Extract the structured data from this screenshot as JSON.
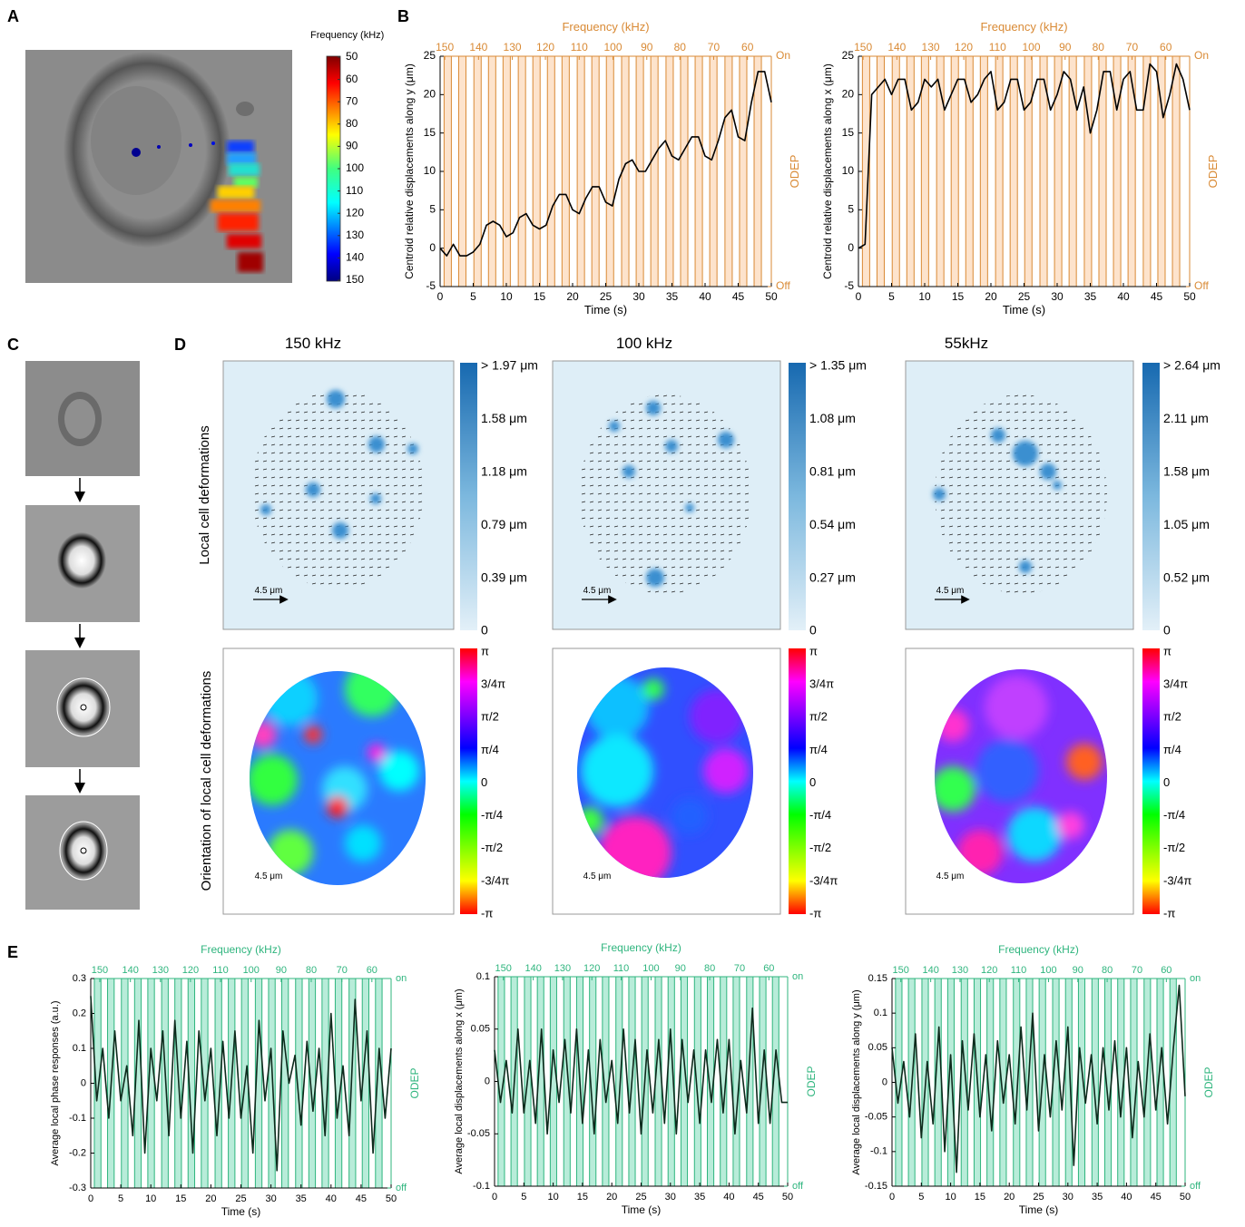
{
  "panel_labels": [
    "A",
    "B",
    "C",
    "D",
    "E"
  ],
  "panel_a": {
    "colorbar_title": "Frequency (kHz)",
    "colorbar_ticks": [
      50,
      60,
      70,
      80,
      90,
      100,
      110,
      120,
      130,
      140,
      150
    ]
  },
  "panel_d": {
    "titles": [
      "150 kHz",
      "100 kHz",
      "55kHz"
    ],
    "row_labels": [
      "Local cell deformations",
      "Orientation of local cell deformations"
    ],
    "scale_bar": "4.5 μm",
    "deformation_colorbars": [
      [
        "> 1.97 μm",
        "1.58 μm",
        "1.18 μm",
        "0.79 μm",
        "0.39 μm",
        "0"
      ],
      [
        "> 1.35 μm",
        "1.08 μm",
        "0.81 μm",
        "0.54 μm",
        "0.27 μm",
        "0"
      ],
      [
        "> 2.64 μm",
        "2.11 μm",
        "1.58 μm",
        "1.05 μm",
        "0.52 μm",
        "0"
      ]
    ],
    "orientation_colorbar": [
      "π",
      "3/4π",
      "π/2",
      "π/4",
      "0",
      "-π/4",
      "-π/2",
      "-3/4π",
      "-π"
    ]
  },
  "chart_data": [
    {
      "type": "line",
      "x_label": "Time (s)",
      "y_label": "Centroid relative displacements along y (μm)",
      "x2_label": "Frequency (kHz)",
      "y2_label": "ODEP",
      "x": [
        0,
        1,
        2,
        3,
        4,
        5,
        6,
        7,
        8,
        9,
        10,
        11,
        12,
        13,
        14,
        15,
        16,
        17,
        18,
        19,
        20,
        21,
        22,
        23,
        24,
        25,
        26,
        27,
        28,
        29,
        30,
        31,
        32,
        33,
        34,
        35,
        36,
        37,
        38,
        39,
        40,
        41,
        42,
        43,
        44,
        45,
        46,
        47,
        48,
        49,
        50
      ],
      "series": [
        {
          "color": "#000000",
          "values": [
            0,
            -1,
            0.5,
            -1,
            -1,
            -0.5,
            0.5,
            3,
            3.5,
            3,
            1.5,
            2,
            4,
            4.5,
            3,
            2.5,
            3,
            5.5,
            7,
            7,
            5,
            4.5,
            6.5,
            8,
            8,
            6,
            5.5,
            9,
            11,
            11.5,
            10,
            10,
            11.5,
            13,
            14,
            12,
            11.5,
            13,
            14.5,
            14.5,
            12,
            11.5,
            14,
            17,
            18,
            14.5,
            14,
            19,
            23,
            23,
            19
          ]
        }
      ],
      "xlim": [
        0,
        50
      ],
      "xticks": [
        0,
        5,
        10,
        15,
        20,
        25,
        30,
        35,
        40,
        45,
        50
      ],
      "ylim": [
        -5,
        25
      ],
      "yticks": [
        -5,
        0,
        5,
        10,
        15,
        20,
        25
      ],
      "x2ticks": [
        {
          "value": 0.7,
          "label": "150"
        },
        {
          "value": 5.8,
          "label": "140"
        },
        {
          "value": 10.9,
          "label": "130"
        },
        {
          "value": 15.9,
          "label": "120"
        },
        {
          "value": 21.0,
          "label": "110"
        },
        {
          "value": 26.1,
          "label": "100"
        },
        {
          "value": 31.2,
          "label": "90"
        },
        {
          "value": 36.2,
          "label": "80"
        },
        {
          "value": 41.3,
          "label": "70"
        },
        {
          "value": 46.4,
          "label": "60"
        }
      ],
      "y2lim": [
        0,
        1
      ],
      "y2ticks": [
        {
          "value": 1,
          "label": "On"
        },
        {
          "value": 0,
          "label": "Off"
        }
      ],
      "odep": {
        "fill": "#fde3cc",
        "edge": "#d98a35",
        "starts": [
          0.6,
          2.8,
          5.1,
          7.3,
          9.5,
          11.8,
          14.0,
          16.2,
          18.4,
          20.7,
          22.9,
          25.1,
          27.4,
          29.6,
          31.8,
          34.1,
          36.3,
          38.5,
          40.7,
          43.0,
          45.2,
          47.4
        ],
        "width": 1.1
      }
    },
    {
      "type": "line",
      "x_label": "Time (s)",
      "y_label": "Centroid relative displacements along x (μm)",
      "x2_label": "Frequency (kHz)",
      "y2_label": "ODEP",
      "x": [
        0,
        1,
        2,
        3,
        4,
        5,
        6,
        7,
        8,
        9,
        10,
        11,
        12,
        13,
        14,
        15,
        16,
        17,
        18,
        19,
        20,
        21,
        22,
        23,
        24,
        25,
        26,
        27,
        28,
        29,
        30,
        31,
        32,
        33,
        34,
        35,
        36,
        37,
        38,
        39,
        40,
        41,
        42,
        43,
        44,
        45,
        46,
        47,
        48,
        49,
        50
      ],
      "series": [
        {
          "color": "#000000",
          "values": [
            0,
            0.5,
            20,
            21,
            22,
            20,
            22,
            22,
            18,
            19,
            22,
            21,
            22,
            18,
            20,
            22,
            22,
            19,
            20,
            22,
            23,
            18,
            19,
            22,
            22,
            18,
            19,
            22,
            22,
            18,
            20,
            23,
            22,
            18,
            21,
            15,
            18,
            23,
            23,
            18,
            22,
            23,
            18,
            18,
            24,
            23,
            17,
            20,
            24,
            22,
            18
          ]
        }
      ],
      "xlim": [
        0,
        50
      ],
      "xticks": [
        0,
        5,
        10,
        15,
        20,
        25,
        30,
        35,
        40,
        45,
        50
      ],
      "ylim": [
        -5,
        25
      ],
      "yticks": [
        -5,
        0,
        5,
        10,
        15,
        20,
        25
      ],
      "x2ticks": [
        {
          "value": 0.7,
          "label": "150"
        },
        {
          "value": 5.8,
          "label": "140"
        },
        {
          "value": 10.9,
          "label": "130"
        },
        {
          "value": 15.9,
          "label": "120"
        },
        {
          "value": 21.0,
          "label": "110"
        },
        {
          "value": 26.1,
          "label": "100"
        },
        {
          "value": 31.2,
          "label": "90"
        },
        {
          "value": 36.2,
          "label": "80"
        },
        {
          "value": 41.3,
          "label": "70"
        },
        {
          "value": 46.4,
          "label": "60"
        }
      ],
      "y2lim": [
        0,
        1
      ],
      "y2ticks": [
        {
          "value": 1,
          "label": "On"
        },
        {
          "value": 0,
          "label": "Off"
        }
      ],
      "odep": {
        "fill": "#fde3cc",
        "edge": "#d98a35",
        "starts": [
          0.6,
          2.8,
          5.1,
          7.3,
          9.5,
          11.8,
          14.0,
          16.2,
          18.4,
          20.7,
          22.9,
          25.1,
          27.4,
          29.6,
          31.8,
          34.1,
          36.3,
          38.5,
          40.7,
          43.0,
          45.2,
          47.4
        ],
        "width": 1.1
      }
    },
    {
      "type": "line",
      "x_label": "Time (s)",
      "y_label": "Average local phase responses (a.u.)",
      "x2_label": "Frequency (kHz)",
      "y2_label": "ODEP",
      "x": [
        0,
        1,
        2,
        3,
        4,
        5,
        6,
        7,
        8,
        9,
        10,
        11,
        12,
        13,
        14,
        15,
        16,
        17,
        18,
        19,
        20,
        21,
        22,
        23,
        24,
        25,
        26,
        27,
        28,
        29,
        30,
        31,
        32,
        33,
        34,
        35,
        36,
        37,
        38,
        39,
        40,
        41,
        42,
        43,
        44,
        45,
        46,
        47,
        48,
        49,
        50
      ],
      "series": [
        {
          "color": "#0d2a1c",
          "values": [
            0.25,
            -0.05,
            0.1,
            -0.1,
            0.15,
            -0.05,
            0.05,
            -0.15,
            0.18,
            -0.2,
            0.1,
            -0.05,
            0.15,
            -0.15,
            0.18,
            -0.1,
            0.12,
            -0.2,
            0.15,
            -0.05,
            0.1,
            -0.15,
            0.12,
            -0.1,
            0.15,
            -0.1,
            0.05,
            -0.2,
            0.18,
            -0.05,
            0.1,
            -0.25,
            0.15,
            0,
            0.08,
            -0.12,
            0.12,
            -0.08,
            0.1,
            -0.15,
            0.2,
            -0.1,
            0.05,
            -0.15,
            0.24,
            -0.05,
            0.15,
            -0.2,
            0.1,
            -0.1,
            0.1
          ]
        }
      ],
      "xlim": [
        0,
        50
      ],
      "xticks": [
        0,
        5,
        10,
        15,
        20,
        25,
        30,
        35,
        40,
        45,
        50
      ],
      "ylim": [
        -0.3,
        0.3
      ],
      "yticks": [
        -0.3,
        -0.2,
        -0.1,
        0,
        0.1,
        0.2,
        0.3
      ],
      "x2ticks": [
        {
          "value": 1.5,
          "label": "150"
        },
        {
          "value": 6.6,
          "label": "140"
        },
        {
          "value": 11.6,
          "label": "130"
        },
        {
          "value": 16.6,
          "label": "120"
        },
        {
          "value": 21.6,
          "label": "110"
        },
        {
          "value": 26.7,
          "label": "100"
        },
        {
          "value": 31.7,
          "label": "90"
        },
        {
          "value": 36.7,
          "label": "80"
        },
        {
          "value": 41.8,
          "label": "70"
        },
        {
          "value": 46.8,
          "label": "60"
        }
      ],
      "y2lim": [
        0,
        1
      ],
      "y2ticks": [
        {
          "value": 1,
          "label": "on"
        },
        {
          "value": 0,
          "label": "off"
        }
      ],
      "odep": {
        "fill": "#b8ecd9",
        "edge": "#2fb57e",
        "starts": [
          0.6,
          2.8,
          5.1,
          7.3,
          9.5,
          11.8,
          14.0,
          16.2,
          18.4,
          20.7,
          22.9,
          25.1,
          27.4,
          29.6,
          31.8,
          34.1,
          36.3,
          38.5,
          40.7,
          43.0,
          45.2,
          47.4
        ],
        "width": 1.1
      }
    },
    {
      "type": "line",
      "x_label": "Time (s)",
      "y_label": "Average local displacements along x (μm)",
      "x2_label": "Frequency (kHz)",
      "y2_label": "ODEP",
      "x": [
        0,
        1,
        2,
        3,
        4,
        5,
        6,
        7,
        8,
        9,
        10,
        11,
        12,
        13,
        14,
        15,
        16,
        17,
        18,
        19,
        20,
        21,
        22,
        23,
        24,
        25,
        26,
        27,
        28,
        29,
        30,
        31,
        32,
        33,
        34,
        35,
        36,
        37,
        38,
        39,
        40,
        41,
        42,
        43,
        44,
        45,
        46,
        47,
        48,
        49,
        50
      ],
      "series": [
        {
          "color": "#0d2a1c",
          "values": [
            0.03,
            -0.02,
            0.02,
            -0.03,
            0.05,
            -0.03,
            0.02,
            -0.04,
            0.05,
            -0.05,
            0.03,
            -0.02,
            0.04,
            -0.03,
            0.05,
            -0.04,
            0.03,
            -0.05,
            0.04,
            -0.02,
            0.02,
            -0.04,
            0.05,
            -0.03,
            0.04,
            -0.05,
            0.03,
            -0.03,
            0.04,
            -0.04,
            0.05,
            -0.05,
            0.04,
            -0.02,
            0.03,
            -0.04,
            0.03,
            -0.02,
            0.04,
            -0.03,
            0.04,
            -0.05,
            0.02,
            -0.03,
            0.07,
            -0.04,
            0.03,
            -0.04,
            0.03,
            -0.02,
            -0.02
          ]
        }
      ],
      "xlim": [
        0,
        50
      ],
      "xticks": [
        0,
        5,
        10,
        15,
        20,
        25,
        30,
        35,
        40,
        45,
        50
      ],
      "ylim": [
        -0.1,
        0.1
      ],
      "yticks": [
        -0.1,
        -0.05,
        0,
        0.05,
        0.1
      ],
      "x2ticks": [
        {
          "value": 1.5,
          "label": "150"
        },
        {
          "value": 6.6,
          "label": "140"
        },
        {
          "value": 11.6,
          "label": "130"
        },
        {
          "value": 16.6,
          "label": "120"
        },
        {
          "value": 21.6,
          "label": "110"
        },
        {
          "value": 26.7,
          "label": "100"
        },
        {
          "value": 31.7,
          "label": "90"
        },
        {
          "value": 36.7,
          "label": "80"
        },
        {
          "value": 41.8,
          "label": "70"
        },
        {
          "value": 46.8,
          "label": "60"
        }
      ],
      "y2lim": [
        0,
        1
      ],
      "y2ticks": [
        {
          "value": 1,
          "label": "on"
        },
        {
          "value": 0,
          "label": "off"
        }
      ],
      "odep": {
        "fill": "#b8ecd9",
        "edge": "#2fb57e",
        "starts": [
          0.6,
          2.8,
          5.1,
          7.3,
          9.5,
          11.8,
          14.0,
          16.2,
          18.4,
          20.7,
          22.9,
          25.1,
          27.4,
          29.6,
          31.8,
          34.1,
          36.3,
          38.5,
          40.7,
          43.0,
          45.2,
          47.4
        ],
        "width": 1.1
      }
    },
    {
      "type": "line",
      "x_label": "Time (s)",
      "y_label": "Average local displacements along y (μm)",
      "x2_label": "Frequency (kHz)",
      "y2_label": "ODEP",
      "x": [
        0,
        1,
        2,
        3,
        4,
        5,
        6,
        7,
        8,
        9,
        10,
        11,
        12,
        13,
        14,
        15,
        16,
        17,
        18,
        19,
        20,
        21,
        22,
        23,
        24,
        25,
        26,
        27,
        28,
        29,
        30,
        31,
        32,
        33,
        34,
        35,
        36,
        37,
        38,
        39,
        40,
        41,
        42,
        43,
        44,
        45,
        46,
        47,
        48,
        49,
        50
      ],
      "series": [
        {
          "color": "#0d2a1c",
          "values": [
            0.05,
            -0.03,
            0.03,
            -0.05,
            0.07,
            -0.08,
            0.03,
            -0.06,
            0.08,
            -0.1,
            0.04,
            -0.13,
            0.06,
            -0.04,
            0.07,
            -0.05,
            0.04,
            -0.07,
            0.06,
            -0.03,
            0.04,
            -0.06,
            0.08,
            -0.04,
            0.1,
            -0.07,
            0.04,
            -0.05,
            0.06,
            -0.04,
            0.08,
            -0.12,
            0.05,
            -0.03,
            0.04,
            -0.06,
            0.05,
            -0.04,
            0.06,
            -0.05,
            0.05,
            -0.08,
            0.03,
            -0.05,
            0.07,
            -0.04,
            0.05,
            -0.06,
            0.05,
            0.14,
            -0.02
          ]
        }
      ],
      "xlim": [
        0,
        50
      ],
      "xticks": [
        0,
        5,
        10,
        15,
        20,
        25,
        30,
        35,
        40,
        45,
        50
      ],
      "ylim": [
        -0.15,
        0.15
      ],
      "yticks": [
        -0.15,
        -0.1,
        -0.05,
        0,
        0.05,
        0.1,
        0.15
      ],
      "x2ticks": [
        {
          "value": 1.5,
          "label": "150"
        },
        {
          "value": 6.6,
          "label": "140"
        },
        {
          "value": 11.6,
          "label": "130"
        },
        {
          "value": 16.6,
          "label": "120"
        },
        {
          "value": 21.6,
          "label": "110"
        },
        {
          "value": 26.7,
          "label": "100"
        },
        {
          "value": 31.7,
          "label": "90"
        },
        {
          "value": 36.7,
          "label": "80"
        },
        {
          "value": 41.8,
          "label": "70"
        },
        {
          "value": 46.8,
          "label": "60"
        }
      ],
      "y2lim": [
        0,
        1
      ],
      "y2ticks": [
        {
          "value": 1,
          "label": "on"
        },
        {
          "value": 0,
          "label": "off"
        }
      ],
      "odep": {
        "fill": "#b8ecd9",
        "edge": "#2fb57e",
        "starts": [
          0.6,
          2.8,
          5.1,
          7.3,
          9.5,
          11.8,
          14.0,
          16.2,
          18.4,
          20.7,
          22.9,
          25.1,
          27.4,
          29.6,
          31.8,
          34.1,
          36.3,
          38.5,
          40.7,
          43.0,
          45.2,
          47.4
        ],
        "width": 1.1
      }
    }
  ]
}
